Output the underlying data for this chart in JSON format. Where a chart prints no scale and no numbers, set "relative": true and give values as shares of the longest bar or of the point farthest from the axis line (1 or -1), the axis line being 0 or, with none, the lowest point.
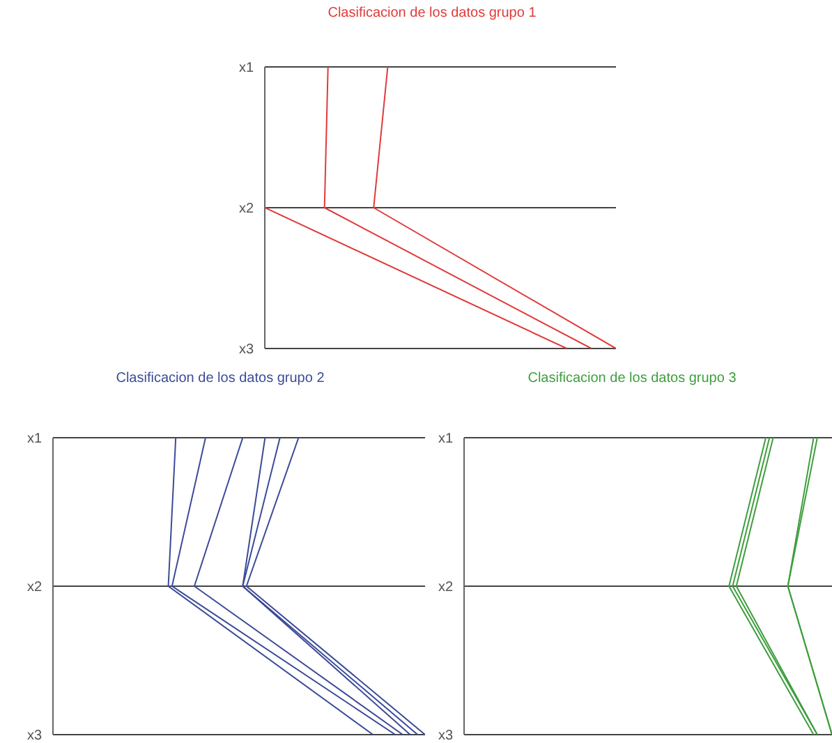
{
  "chart_data": [
    {
      "type": "line",
      "orientation": "horizontal",
      "relative": true,
      "grid": "y",
      "title": "Clasificacion de los datos grupo 1",
      "categories": [
        "x1",
        "x2",
        "x3"
      ],
      "series": [
        {
          "color": "#e03a3a",
          "values": [
            0,
            0,
            0.86
          ]
        },
        {
          "color": "#e03a3a",
          "values": [
            0.18,
            0.17,
            0.93
          ]
        },
        {
          "color": "#e03a3a",
          "values": [
            0.35,
            0.31,
            1.0
          ]
        }
      ]
    },
    {
      "type": "line",
      "orientation": "horizontal",
      "relative": true,
      "grid": "y",
      "title": "Clasificacion de los datos grupo 2",
      "categories": [
        "x1",
        "x2",
        "x3"
      ],
      "series": [
        {
          "color": "#3b4b98",
          "values": [
            0.33,
            0.31,
            0.86
          ]
        },
        {
          "color": "#3b4b98",
          "values": [
            0.41,
            0.32,
            0.92
          ]
        },
        {
          "color": "#3b4b98",
          "values": [
            0.51,
            0.38,
            0.94
          ]
        },
        {
          "color": "#3b4b98",
          "values": [
            0.57,
            0.51,
            0.96
          ]
        },
        {
          "color": "#3b4b98",
          "values": [
            0.61,
            0.51,
            0.98
          ]
        },
        {
          "color": "#3b4b98",
          "values": [
            0.66,
            0.52,
            1.0
          ]
        }
      ]
    },
    {
      "type": "line",
      "orientation": "horizontal",
      "relative": true,
      "grid": "y",
      "title": "Clasificacion de los datos grupo 3",
      "categories": [
        "x1",
        "x2",
        "x3"
      ],
      "series": [
        {
          "color": "#3e9e3e",
          "values": [
            0.82,
            0.72,
            0.95
          ]
        },
        {
          "color": "#3e9e3e",
          "values": [
            0.83,
            0.73,
            0.96
          ]
        },
        {
          "color": "#3e9e3e",
          "values": [
            0.84,
            0.74,
            0.96
          ]
        },
        {
          "color": "#3e9e3e",
          "values": [
            0.95,
            0.88,
            1.0
          ]
        },
        {
          "color": "#3e9e3e",
          "values": [
            0.96,
            0.88,
            1.0
          ]
        }
      ]
    }
  ]
}
